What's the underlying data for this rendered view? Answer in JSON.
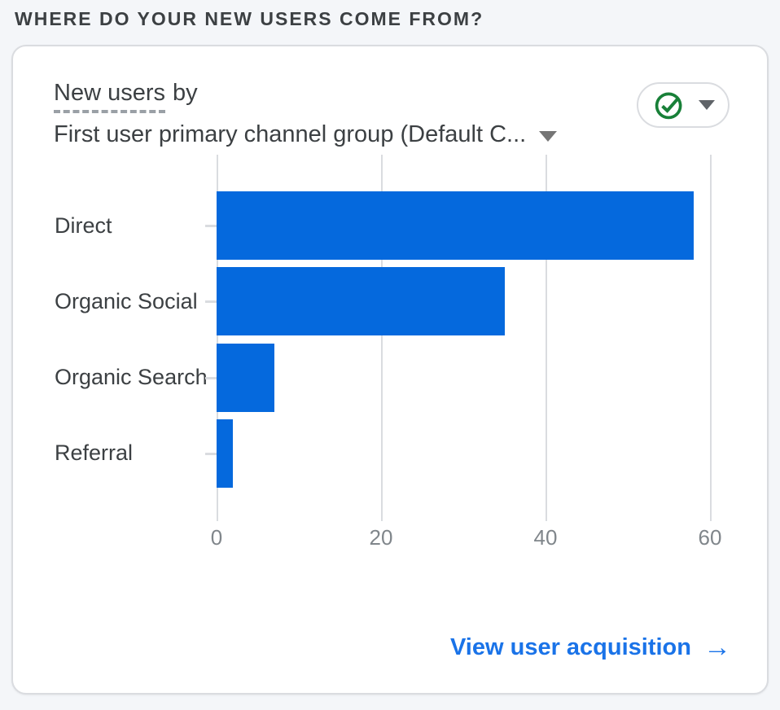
{
  "header": {
    "title": "WHERE DO YOUR NEW USERS COME FROM?"
  },
  "card": {
    "metric_term": "New users",
    "metric_suffix": "by",
    "dimension_label": "First user primary channel group (Default C...",
    "footer": {
      "link_label": "View user acquisition",
      "arrow": "→"
    }
  },
  "icons": {
    "status_button": "check-circle-icon",
    "status_dropdown": "chevron-down-icon",
    "dimension_dropdown": "chevron-down-icon",
    "footer_arrow": "arrow-right-icon"
  },
  "colors": {
    "bar_blue": "#0569dd",
    "link_blue": "#1a73e8",
    "check_green": "#188038",
    "grid_gray": "#dadce0",
    "axis_label_gray": "#80868b",
    "text_dark": "#3c4043",
    "page_background": "#f4f6f9"
  },
  "chart_data": {
    "type": "bar",
    "orientation": "horizontal",
    "title": "New users by First user primary channel group (Default C...",
    "categories": [
      "Direct",
      "Organic Social",
      "Organic Search",
      "Referral"
    ],
    "values": [
      58,
      35,
      7,
      2
    ],
    "xlabel": "",
    "ylabel": "",
    "xlim": [
      0,
      60
    ],
    "xticks": [
      0,
      20,
      40,
      60
    ],
    "grid": true,
    "legend": false,
    "bar_color": "#0569dd"
  }
}
